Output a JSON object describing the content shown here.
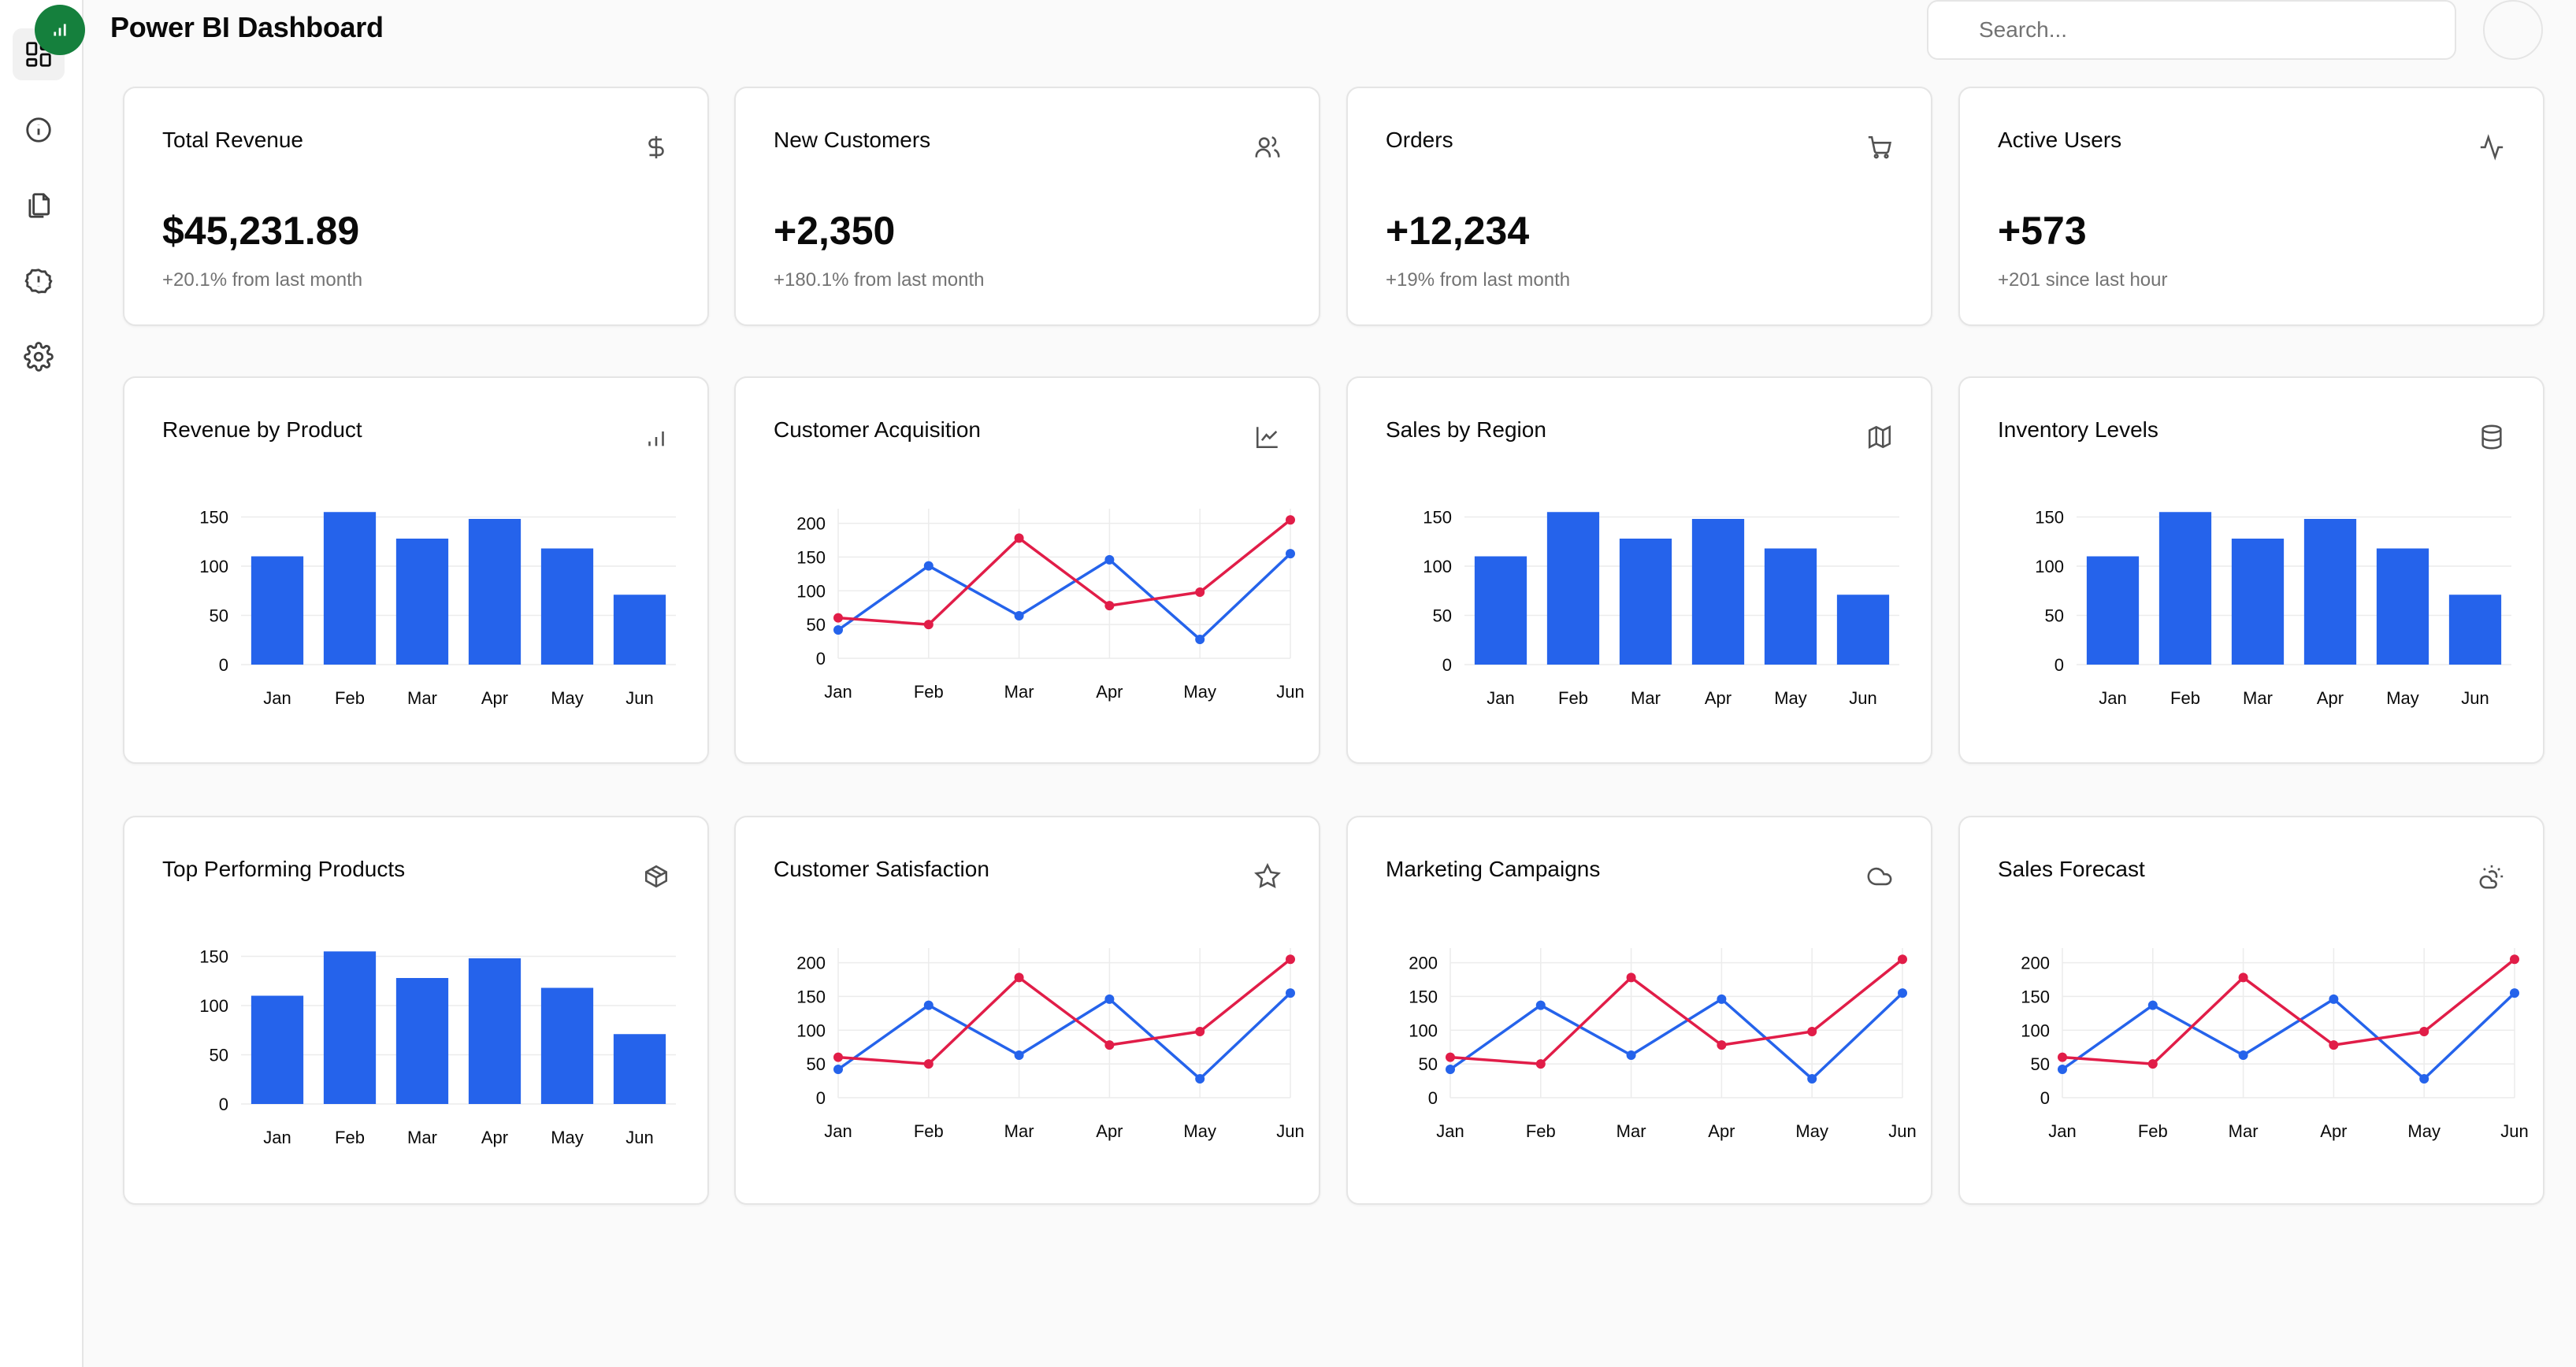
{
  "app": {
    "title": "Power BI Dashboard"
  },
  "search": {
    "placeholder": "Search..."
  },
  "sidebar": {
    "items": [
      {
        "name": "dashboard",
        "icon": "layout-dashboard-icon",
        "active": true
      },
      {
        "name": "info",
        "icon": "info-icon",
        "active": false
      },
      {
        "name": "reports",
        "icon": "files-icon",
        "active": false
      },
      {
        "name": "alerts",
        "icon": "alert-circle-icon",
        "active": false
      },
      {
        "name": "settings",
        "icon": "gear-icon",
        "active": false
      }
    ]
  },
  "kpis": [
    {
      "title": "Total Revenue",
      "value": "$45,231.89",
      "sub": "+20.1% from last month",
      "icon": "dollar-icon"
    },
    {
      "title": "New Customers",
      "value": "+2,350",
      "sub": "+180.1% from last month",
      "icon": "users-icon"
    },
    {
      "title": "Orders",
      "value": "+12,234",
      "sub": "+19% from last month",
      "icon": "cart-icon"
    },
    {
      "title": "Active Users",
      "value": "+573",
      "sub": "+201 since last hour",
      "icon": "activity-icon"
    }
  ],
  "colors": {
    "bar": "#2563eb",
    "line_a": "#2563eb",
    "line_b": "#e11d48",
    "grid": "#ececec"
  },
  "chart_data": [
    {
      "title": "Revenue by Product",
      "icon": "bar-chart-icon",
      "type": "bar",
      "categories": [
        "Jan",
        "Feb",
        "Mar",
        "Apr",
        "May",
        "Jun"
      ],
      "values": [
        110,
        155,
        128,
        148,
        118,
        71
      ],
      "ylim": [
        0,
        160
      ],
      "yticks": [
        "0",
        "50",
        "100",
        "150"
      ]
    },
    {
      "title": "Customer Acquisition",
      "icon": "line-chart-icon",
      "type": "line",
      "categories": [
        "Jan",
        "Feb",
        "Mar",
        "Apr",
        "May",
        "Jun"
      ],
      "series": [
        {
          "values": [
            42,
            137,
            63,
            146,
            28,
            155
          ]
        },
        {
          "values": [
            60,
            50,
            178,
            78,
            98,
            205
          ]
        }
      ],
      "ylim": [
        0,
        210
      ],
      "yticks": [
        "0",
        "50",
        "100",
        "150",
        "200"
      ]
    },
    {
      "title": "Sales by Region",
      "icon": "map-icon",
      "type": "bar",
      "categories": [
        "Jan",
        "Feb",
        "Mar",
        "Apr",
        "May",
        "Jun"
      ],
      "values": [
        110,
        155,
        128,
        148,
        118,
        71
      ],
      "ylim": [
        0,
        160
      ],
      "yticks": [
        "0",
        "50",
        "100",
        "150"
      ]
    },
    {
      "title": "Inventory Levels",
      "icon": "database-icon",
      "type": "bar",
      "categories": [
        "Jan",
        "Feb",
        "Mar",
        "Apr",
        "May",
        "Jun"
      ],
      "values": [
        110,
        155,
        128,
        148,
        118,
        71
      ],
      "ylim": [
        0,
        160
      ],
      "yticks": [
        "0",
        "50",
        "100",
        "150"
      ]
    },
    {
      "title": "Top Performing Products",
      "icon": "package-icon",
      "type": "bar",
      "categories": [
        "Jan",
        "Feb",
        "Mar",
        "Apr",
        "May",
        "Jun"
      ],
      "values": [
        110,
        155,
        128,
        148,
        118,
        71
      ],
      "ylim": [
        0,
        160
      ],
      "yticks": [
        "0",
        "50",
        "100",
        "150"
      ]
    },
    {
      "title": "Customer Satisfaction",
      "icon": "star-icon",
      "type": "line",
      "categories": [
        "Jan",
        "Feb",
        "Mar",
        "Apr",
        "May",
        "Jun"
      ],
      "series": [
        {
          "values": [
            42,
            137,
            63,
            146,
            28,
            155
          ]
        },
        {
          "values": [
            60,
            50,
            178,
            78,
            98,
            205
          ]
        }
      ],
      "ylim": [
        0,
        210
      ],
      "yticks": [
        "0",
        "50",
        "100",
        "150",
        "200"
      ]
    },
    {
      "title": "Marketing Campaigns",
      "icon": "cloud-icon",
      "type": "line",
      "categories": [
        "Jan",
        "Feb",
        "Mar",
        "Apr",
        "May",
        "Jun"
      ],
      "series": [
        {
          "values": [
            42,
            137,
            63,
            146,
            28,
            155
          ]
        },
        {
          "values": [
            60,
            50,
            178,
            78,
            98,
            205
          ]
        }
      ],
      "ylim": [
        0,
        210
      ],
      "yticks": [
        "0",
        "50",
        "100",
        "150",
        "200"
      ]
    },
    {
      "title": "Sales Forecast",
      "icon": "cloud-sun-icon",
      "type": "line",
      "categories": [
        "Jan",
        "Feb",
        "Mar",
        "Apr",
        "May",
        "Jun"
      ],
      "series": [
        {
          "values": [
            42,
            137,
            63,
            146,
            28,
            155
          ]
        },
        {
          "values": [
            60,
            50,
            178,
            78,
            98,
            205
          ]
        }
      ],
      "ylim": [
        0,
        210
      ],
      "yticks": [
        "0",
        "50",
        "100",
        "150",
        "200"
      ]
    }
  ]
}
